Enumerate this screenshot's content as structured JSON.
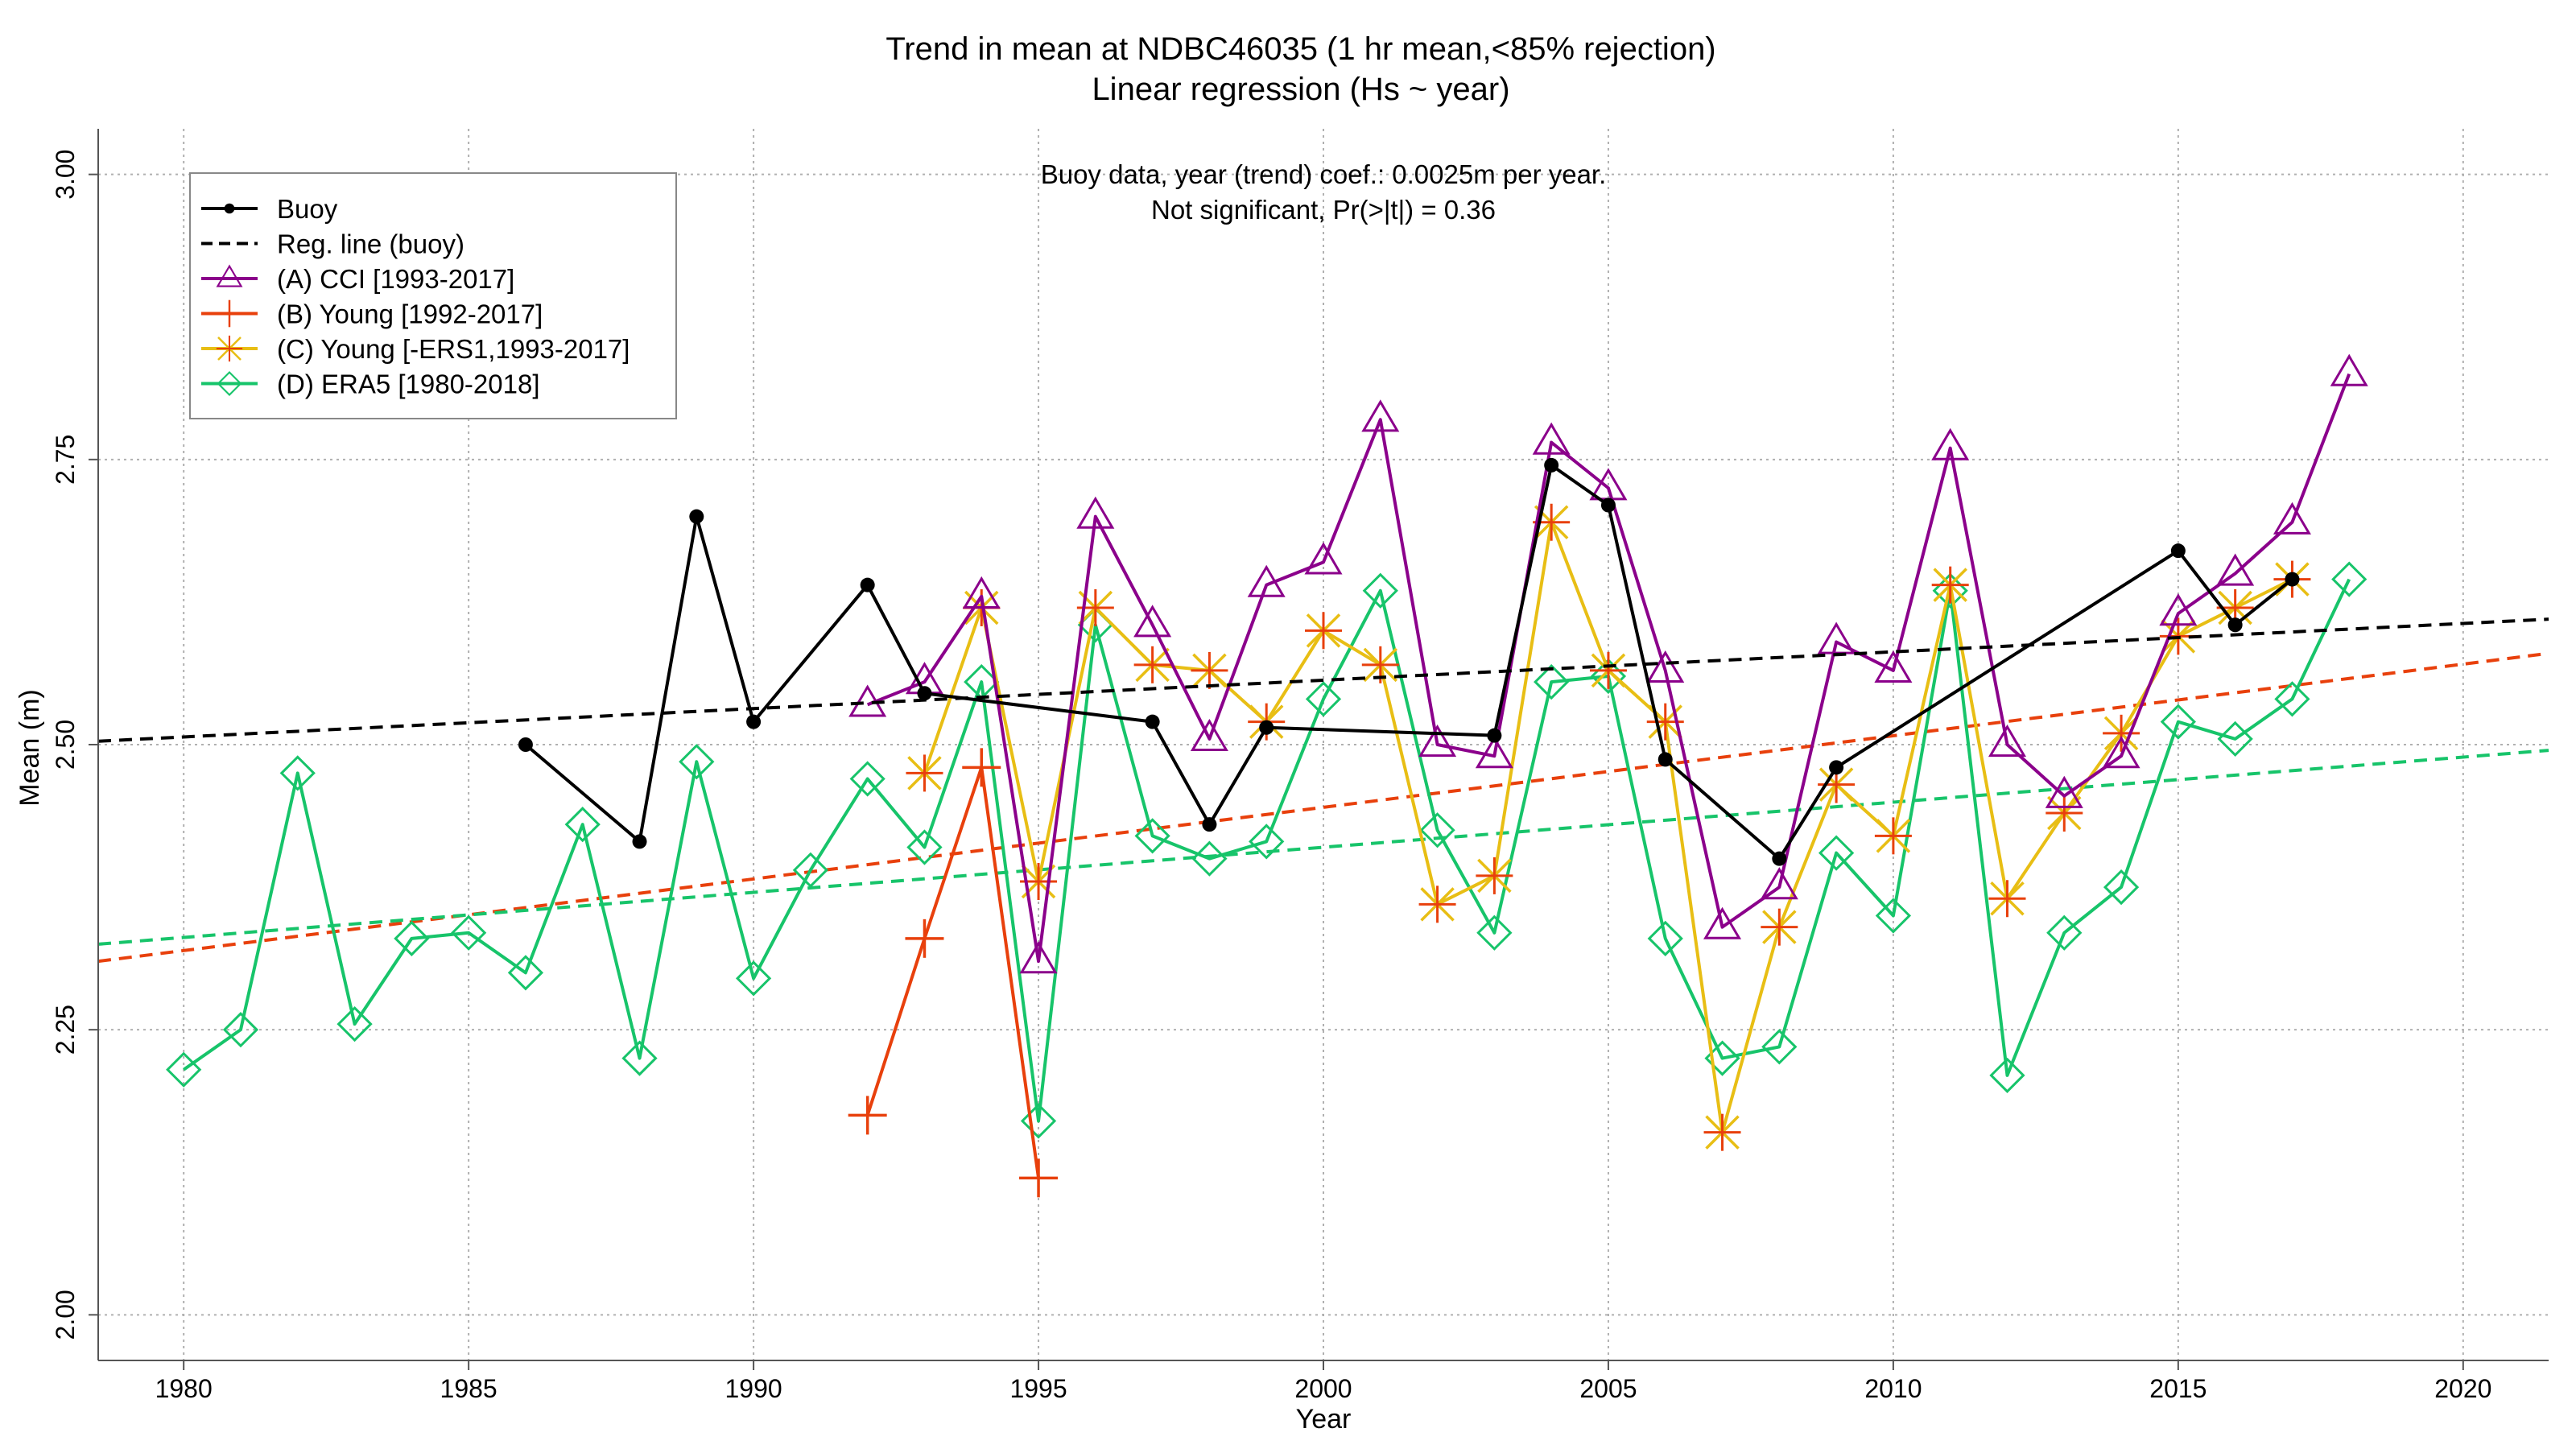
{
  "chart_data": {
    "type": "line",
    "title": "Trend in mean at NDBC46035 (1 hr mean,<85% rejection)",
    "subtitle": "Linear regression (Hs ~ year)",
    "xlabel": "Year",
    "ylabel": "Mean (m)",
    "xlim": [
      1978.5,
      2021.5
    ],
    "ylim": [
      1.96,
      3.04
    ],
    "xticks": [
      1980,
      1985,
      1990,
      1995,
      2000,
      2005,
      2010,
      2015,
      2020
    ],
    "yticks": [
      2.0,
      2.25,
      2.5,
      2.75,
      3.0
    ],
    "ytick_labels": [
      "2.00",
      "2.25",
      "2.50",
      "2.75",
      "3.00"
    ],
    "grid": true,
    "legend_position": "top-left",
    "annotation": {
      "line1": "Buoy data, year (trend) coef.: 0.0025m per year.",
      "line2": "Not significant, Pr(>|t|) = 0.36"
    },
    "series": [
      {
        "name": "Buoy",
        "color": "#000000",
        "marker": "dot",
        "x": [
          1986,
          1988,
          1989,
          1990,
          1992,
          1993,
          1997,
          1998,
          1999,
          2003,
          2004,
          2005,
          2006,
          2008,
          2009,
          2015,
          2016,
          2017
        ],
        "y": [
          2.5,
          2.415,
          2.7,
          2.52,
          2.64,
          2.545,
          2.52,
          2.43,
          2.515,
          2.508,
          2.745,
          2.71,
          2.487,
          2.4,
          2.48,
          2.67,
          2.605,
          2.645
        ]
      },
      {
        "name": "Reg. line (buoy)",
        "color": "#000000",
        "style": "dashed",
        "x": [
          1978.5,
          2021.5
        ],
        "y": [
          2.503,
          2.61
        ]
      },
      {
        "name": "(A) CCI [1993-2017]",
        "color": "#8B008B",
        "marker": "triangle",
        "x": [
          1992,
          1993,
          1994,
          1995,
          1996,
          1997,
          1998,
          1999,
          2000,
          2001,
          2002,
          2003,
          2004,
          2005,
          2006,
          2007,
          2008,
          2009,
          2010,
          2011,
          2012,
          2013,
          2014,
          2015,
          2016,
          2017,
          2018
        ],
        "y": [
          2.535,
          2.555,
          2.63,
          2.31,
          2.7,
          2.605,
          2.505,
          2.64,
          2.66,
          2.785,
          2.5,
          2.49,
          2.765,
          2.725,
          2.565,
          2.34,
          2.375,
          2.59,
          2.565,
          2.76,
          2.5,
          2.455,
          2.49,
          2.615,
          2.65,
          2.695,
          2.825
        ]
      },
      {
        "name": "(B) Young [1992-2017]",
        "color": "#E8400C",
        "marker": "plus",
        "x": [
          1992,
          1993,
          1994,
          1995
        ],
        "y": [
          2.175,
          2.33,
          2.48,
          2.12
        ]
      },
      {
        "name": "(C) Young [-ERS1,1993-2017]",
        "color": "#E8BE14",
        "marker": "star",
        "x": [
          1993,
          1994,
          1995,
          1996,
          1997,
          1998,
          1999,
          2000,
          2001,
          2002,
          2003,
          2004,
          2005,
          2006,
          2007,
          2008,
          2009,
          2010,
          2011,
          2012,
          2013,
          2014,
          2015,
          2016,
          2017
        ],
        "y": [
          2.475,
          2.62,
          2.38,
          2.62,
          2.57,
          2.565,
          2.52,
          2.6,
          2.57,
          2.36,
          2.385,
          2.695,
          2.565,
          2.52,
          2.16,
          2.34,
          2.465,
          2.42,
          2.64,
          2.365,
          2.44,
          2.51,
          2.595,
          2.62,
          2.645
        ]
      },
      {
        "name": "(D) ERA5 [1980-2018]",
        "color": "#17C46A",
        "marker": "diamond",
        "x": [
          1980,
          1981,
          1982,
          1983,
          1984,
          1985,
          1986,
          1987,
          1988,
          1989,
          1990,
          1991,
          1992,
          1993,
          1994,
          1995,
          1996,
          1997,
          1998,
          1999,
          2000,
          2001,
          2002,
          2003,
          2004,
          2005,
          2006,
          2007,
          2008,
          2009,
          2010,
          2011,
          2012,
          2013,
          2014,
          2015,
          2016,
          2017,
          2018
        ],
        "y": [
          2.215,
          2.25,
          2.475,
          2.255,
          2.33,
          2.335,
          2.3,
          2.43,
          2.225,
          2.485,
          2.295,
          2.39,
          2.47,
          2.41,
          2.555,
          2.17,
          2.605,
          2.42,
          2.4,
          2.415,
          2.54,
          2.635,
          2.425,
          2.335,
          2.555,
          2.56,
          2.33,
          2.225,
          2.235,
          2.405,
          2.35,
          2.635,
          2.21,
          2.335,
          2.375,
          2.52,
          2.505,
          2.54,
          2.645
        ]
      }
    ],
    "trend_lines": [
      {
        "series": "(B) Young [1992-2017]",
        "color": "#E8400C",
        "x": [
          1978.5,
          2021.5
        ],
        "y": [
          2.31,
          2.58
        ]
      },
      {
        "series": "(D) ERA5 [1980-2018]",
        "color": "#17C46A",
        "x": [
          1978.5,
          2021.5
        ],
        "y": [
          2.325,
          2.495
        ]
      }
    ]
  }
}
